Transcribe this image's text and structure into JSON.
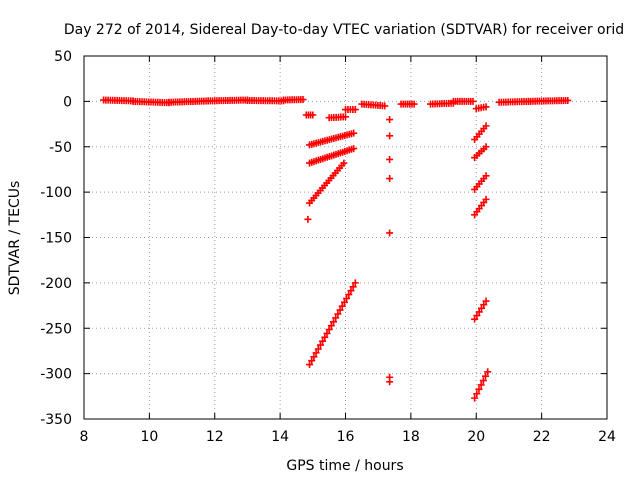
{
  "chart_data": {
    "type": "scatter",
    "title": "Day 272 of 2014, Sidereal Day-to-day VTEC variation (SDTVAR) for receiver orid",
    "xlabel": "GPS time / hours",
    "ylabel": "SDTVAR / TECUs",
    "xlim": [
      8,
      24
    ],
    "ylim": [
      -350,
      50
    ],
    "xticks": [
      8,
      10,
      12,
      14,
      16,
      18,
      20,
      22,
      24
    ],
    "yticks": [
      50,
      0,
      -50,
      -100,
      -150,
      -200,
      -250,
      -300,
      -350
    ],
    "grid": true,
    "marker": "+",
    "color": "#ff0000",
    "series": [
      {
        "name": "SDTVAR",
        "segments": [
          {
            "x0": 8.6,
            "x1": 9.5,
            "y0": 1.5,
            "y1": 0.5
          },
          {
            "x0": 9.5,
            "x1": 10.6,
            "y0": 0.0,
            "y1": -1.5
          },
          {
            "x0": 10.6,
            "x1": 11.8,
            "y0": -1.0,
            "y1": 0.5
          },
          {
            "x0": 11.8,
            "x1": 13.0,
            "y0": 0.5,
            "y1": 1.5
          },
          {
            "x0": 13.0,
            "x1": 14.1,
            "y0": 1.0,
            "y1": 0.5
          },
          {
            "x0": 14.1,
            "x1": 14.7,
            "y0": 1.5,
            "y1": 2.0
          },
          {
            "x0": 14.8,
            "x1": 15.0,
            "y0": -15,
            "y1": -15
          },
          {
            "x0": 15.5,
            "x1": 16.0,
            "y0": -18,
            "y1": -17
          },
          {
            "x0": 16.0,
            "x1": 16.3,
            "y0": -9,
            "y1": -9
          },
          {
            "x0": 16.5,
            "x1": 17.2,
            "y0": -3,
            "y1": -5
          },
          {
            "x0": 17.7,
            "x1": 18.1,
            "y0": -3,
            "y1": -3
          },
          {
            "x0": 18.6,
            "x1": 19.3,
            "y0": -3,
            "y1": -2
          },
          {
            "x0": 19.3,
            "x1": 19.9,
            "y0": 0,
            "y1": 0
          },
          {
            "x0": 20.0,
            "x1": 20.3,
            "y0": -8,
            "y1": -6
          },
          {
            "x0": 20.7,
            "x1": 21.6,
            "y0": -1,
            "y1": 0
          },
          {
            "x0": 21.6,
            "x1": 22.8,
            "y0": 0,
            "y1": 1
          },
          {
            "x0": 14.9,
            "x1": 16.25,
            "y0": -48,
            "y1": -35
          },
          {
            "x0": 14.9,
            "x1": 16.25,
            "y0": -68,
            "y1": -52
          },
          {
            "x0": 14.9,
            "x1": 15.95,
            "y0": -112,
            "y1": -68
          },
          {
            "x0": 14.9,
            "x1": 16.3,
            "y0": -290,
            "y1": -200
          },
          {
            "x0": 19.95,
            "x1": 20.3,
            "y0": -42,
            "y1": -27
          },
          {
            "x0": 19.95,
            "x1": 20.3,
            "y0": -62,
            "y1": -50
          },
          {
            "x0": 19.95,
            "x1": 20.3,
            "y0": -97,
            "y1": -82
          },
          {
            "x0": 19.95,
            "x1": 20.3,
            "y0": -125,
            "y1": -108
          },
          {
            "x0": 19.95,
            "x1": 20.3,
            "y0": -240,
            "y1": -220
          },
          {
            "x0": 19.95,
            "x1": 20.35,
            "y0": -327,
            "y1": -298
          }
        ],
        "points": [
          {
            "x": 14.85,
            "y": -130
          },
          {
            "x": 17.35,
            "y": -20
          },
          {
            "x": 17.35,
            "y": -38
          },
          {
            "x": 17.35,
            "y": -64
          },
          {
            "x": 17.35,
            "y": -85
          },
          {
            "x": 17.35,
            "y": -145
          },
          {
            "x": 17.35,
            "y": -304
          },
          {
            "x": 17.35,
            "y": -309
          }
        ]
      }
    ]
  }
}
